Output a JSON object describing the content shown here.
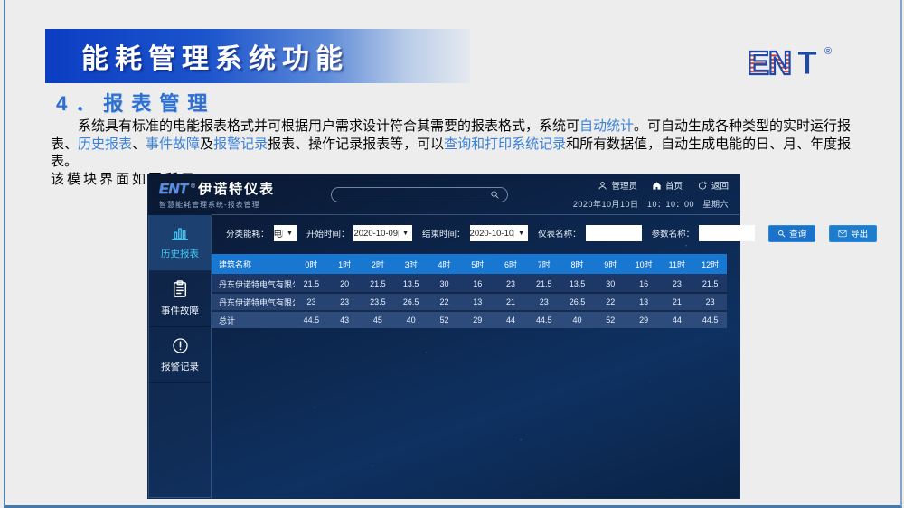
{
  "slide": {
    "banner_title": "能耗管理系统功能",
    "section_title": "4．报表管理",
    "paragraph": {
      "segments": [
        {
          "text": "系统具有标准的电能报表格式并可根据用户需求设计符合其需要的报表格式，系统可",
          "link": false
        },
        {
          "text": "自动统计",
          "link": true
        },
        {
          "text": "。可自动生成各种类型的实时运行报表、",
          "link": false
        },
        {
          "text": "历史报表",
          "link": true
        },
        {
          "text": "、",
          "link": false
        },
        {
          "text": "事件故障",
          "link": true
        },
        {
          "text": "及",
          "link": false
        },
        {
          "text": "报警记录",
          "link": true
        },
        {
          "text": "报表、操作记录报表等，可以",
          "link": false
        },
        {
          "text": "查询和打印系统记录",
          "link": true
        },
        {
          "text": "和所有数据值，自动生成电能的日、月、年度报表。",
          "link": false
        }
      ],
      "closing_line": "该模块界面如图所示："
    },
    "logo": {
      "part1": "EN",
      "part2": "T",
      "reg": "®"
    }
  },
  "app": {
    "logo": {
      "brand": "ENT",
      "reg": "®",
      "name": "伊诺特仪表",
      "subtitle": "智慧能耗管理系统-报表管理"
    },
    "header": {
      "user": "管理员",
      "home": "首页",
      "back": "返回",
      "datetime": "2020年10月10日　10：10：00　星期六"
    },
    "sidebar": [
      {
        "label": "历史报表",
        "icon": "bar-chart-icon",
        "active": true
      },
      {
        "label": "事件故障",
        "icon": "clipboard-icon",
        "active": false
      },
      {
        "label": "报警记录",
        "icon": "alert-circle-icon",
        "active": false
      }
    ],
    "filters": {
      "category_label": "分类能耗：",
      "category_value": "电",
      "start_label": "开始时间：",
      "start_value": "2020-10-09",
      "end_label": "结束时间：",
      "end_value": "2020-10-10",
      "meter_label": "仪表名称：",
      "meter_value": "",
      "param_label": "参数名称：",
      "param_value": "",
      "query_button": "查询",
      "export_button": "导出"
    },
    "table": {
      "headers": [
        "建筑名称",
        "0时",
        "1时",
        "2时",
        "3时",
        "4时",
        "5时",
        "6时",
        "7时",
        "8时",
        "9时",
        "10时",
        "11时",
        "12时"
      ],
      "rows": [
        {
          "name": "丹东伊诺特电气有限公司",
          "values": [
            "21.5",
            "20",
            "21.5",
            "13.5",
            "30",
            "16",
            "23",
            "21.5",
            "13.5",
            "30",
            "16",
            "23",
            "21.5"
          ],
          "total": false
        },
        {
          "name": "丹东伊诺特电气有限公司",
          "values": [
            "23",
            "23",
            "23.5",
            "26.5",
            "22",
            "13",
            "21",
            "23",
            "26.5",
            "22",
            "13",
            "21",
            "23"
          ],
          "total": false
        },
        {
          "name": "总计",
          "values": [
            "44.5",
            "43",
            "45",
            "40",
            "52",
            "29",
            "44",
            "44.5",
            "40",
            "52",
            "29",
            "44",
            "44.5"
          ],
          "total": true
        }
      ]
    },
    "colors": {
      "accent_blue": "#1877d1",
      "link_blue": "#3b82d8",
      "banner_blue": "#0c3dc2",
      "active_cyan": "#3fc6f1",
      "logo_blue": "#1d49a8",
      "logo_red": "#d23b33"
    }
  }
}
